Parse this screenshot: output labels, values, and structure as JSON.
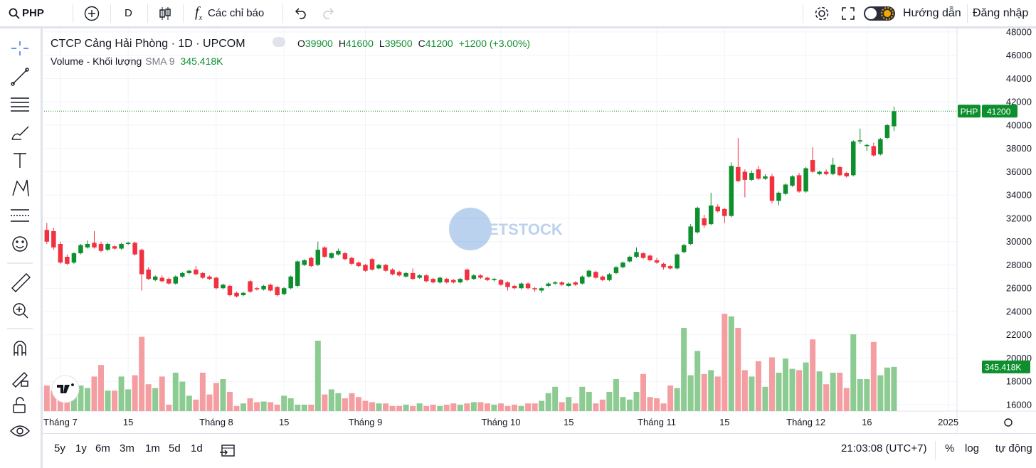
{
  "toolbar": {
    "symbol": "PHP",
    "interval": "D",
    "indicators": "Các chỉ báo",
    "guide": "Hướng dẫn",
    "login": "Đăng nhập"
  },
  "ranges": [
    "5y",
    "1y",
    "6m",
    "3m",
    "1m",
    "5d",
    "1d"
  ],
  "clock": "21:03:08 (UTC+7)",
  "scale_options": [
    "%",
    "log",
    "tự động"
  ],
  "watermark": "ETSTOCK",
  "chart_data": {
    "type": "candlestick",
    "title": "CTCP Cảng Hải Phòng · 1D · UPCOM",
    "ohlc_labels": [
      "O",
      "H",
      "L",
      "C"
    ],
    "change_label": "+1200 (+3.00%)",
    "volume_title": "Volume - Khối lượng",
    "sma_label": "SMA 9",
    "volume_label": "345.418K",
    "price_badge": "PHP",
    "up_color": "#0d8f2e",
    "down_color": "#f0313f",
    "up_volume_color": "#8ccb92",
    "down_volume_color": "#f59ea2",
    "grid": true,
    "xlim": [
      -0.4,
      134.3
    ],
    "xticks": [
      {
        "value": 2,
        "label": "Tháng 7"
      },
      {
        "value": 12,
        "label": "15"
      },
      {
        "value": 25,
        "label": "Tháng 8"
      },
      {
        "value": 35,
        "label": "15"
      },
      {
        "value": 47,
        "label": "Tháng 9"
      },
      {
        "value": 67,
        "label": "Tháng 10"
      },
      {
        "value": 77,
        "label": "15"
      },
      {
        "value": 90,
        "label": "Tháng 11"
      },
      {
        "value": 100,
        "label": "15"
      },
      {
        "value": 112,
        "label": "Tháng 12"
      },
      {
        "value": 121,
        "label": "16"
      },
      {
        "value": 133,
        "label": "2025"
      }
    ],
    "ylim": [
      15450,
      48300
    ],
    "yticks": [
      16000,
      18000,
      20000,
      22000,
      24000,
      26000,
      28000,
      30000,
      32000,
      34000,
      36000,
      38000,
      40000,
      42000,
      44000,
      46000,
      48000
    ],
    "vlim": [
      0,
      1000000
    ],
    "candles": [
      {
        "open": 31000,
        "high": 31600,
        "low": 29800,
        "close": 30000,
        "volume": 200000
      },
      {
        "open": 30900,
        "high": 31200,
        "low": 29300,
        "close": 29500,
        "volume": 160000
      },
      {
        "open": 29800,
        "high": 30000,
        "low": 28100,
        "close": 28200,
        "volume": 120000
      },
      {
        "open": 28700,
        "high": 28900,
        "low": 28000,
        "close": 28100,
        "volume": 150000
      },
      {
        "open": 28200,
        "high": 29100,
        "low": 28100,
        "close": 29000,
        "volume": 180000
      },
      {
        "open": 29000,
        "high": 29800,
        "low": 28900,
        "close": 29700,
        "volume": 200000
      },
      {
        "open": 29500,
        "high": 30100,
        "low": 29400,
        "close": 29800,
        "volume": 180000
      },
      {
        "open": 29900,
        "high": 30900,
        "low": 29400,
        "close": 29500,
        "volume": 270000
      },
      {
        "open": 29800,
        "high": 30000,
        "low": 29100,
        "close": 29200,
        "volume": 360000
      },
      {
        "open": 29300,
        "high": 29900,
        "low": 29200,
        "close": 29800,
        "volume": 160000
      },
      {
        "open": 29600,
        "high": 29700,
        "low": 29300,
        "close": 29400,
        "volume": 160000
      },
      {
        "open": 29400,
        "high": 29900,
        "low": 29300,
        "close": 29800,
        "volume": 270000
      },
      {
        "open": 29800,
        "high": 30000,
        "low": 29700,
        "close": 29900,
        "volume": 170000
      },
      {
        "open": 29900,
        "high": 30000,
        "low": 28800,
        "close": 28900,
        "volume": 280000
      },
      {
        "open": 29300,
        "high": 29400,
        "low": 25800,
        "close": 27200,
        "volume": 580000
      },
      {
        "open": 27600,
        "high": 27800,
        "low": 26700,
        "close": 26800,
        "volume": 210000
      },
      {
        "open": 26700,
        "high": 27100,
        "low": 26600,
        "close": 27000,
        "volume": 180000
      },
      {
        "open": 26900,
        "high": 27100,
        "low": 26500,
        "close": 26600,
        "volume": 270000
      },
      {
        "open": 26800,
        "high": 26900,
        "low": 26300,
        "close": 26400,
        "volume": 50000
      },
      {
        "open": 26400,
        "high": 27100,
        "low": 26300,
        "close": 27000,
        "volume": 300000
      },
      {
        "open": 27000,
        "high": 27400,
        "low": 26900,
        "close": 27300,
        "volume": 230000
      },
      {
        "open": 27300,
        "high": 27600,
        "low": 27200,
        "close": 27500,
        "volume": 120000
      },
      {
        "open": 27600,
        "high": 27900,
        "low": 27100,
        "close": 27200,
        "volume": 90000
      },
      {
        "open": 27300,
        "high": 27400,
        "low": 26800,
        "close": 26900,
        "volume": 300000
      },
      {
        "open": 27000,
        "high": 27100,
        "low": 26700,
        "close": 26800,
        "volume": 130000
      },
      {
        "open": 26900,
        "high": 27000,
        "low": 25900,
        "close": 26000,
        "volume": 220000
      },
      {
        "open": 26000,
        "high": 26400,
        "low": 25900,
        "close": 26300,
        "volume": 250000
      },
      {
        "open": 26200,
        "high": 26300,
        "low": 25300,
        "close": 25400,
        "volume": 150000
      },
      {
        "open": 25600,
        "high": 25700,
        "low": 25200,
        "close": 25300,
        "volume": 40000
      },
      {
        "open": 25400,
        "high": 25700,
        "low": 25300,
        "close": 25600,
        "volume": 60000
      },
      {
        "open": 26600,
        "high": 26700,
        "low": 25600,
        "close": 25700,
        "volume": 100000
      },
      {
        "open": 26000,
        "high": 26100,
        "low": 25800,
        "close": 25900,
        "volume": 70000
      },
      {
        "open": 25900,
        "high": 26300,
        "low": 25800,
        "close": 26200,
        "volume": 75000
      },
      {
        "open": 26300,
        "high": 26400,
        "low": 25700,
        "close": 25800,
        "volume": 70000
      },
      {
        "open": 26100,
        "high": 26200,
        "low": 25300,
        "close": 25400,
        "volume": 50000
      },
      {
        "open": 25500,
        "high": 26100,
        "low": 25400,
        "close": 26000,
        "volume": 120000
      },
      {
        "open": 26000,
        "high": 27100,
        "low": 25900,
        "close": 27000,
        "volume": 100000
      },
      {
        "open": 26200,
        "high": 28400,
        "low": 26100,
        "close": 28300,
        "volume": 50000
      },
      {
        "open": 28000,
        "high": 28500,
        "low": 27900,
        "close": 28400,
        "volume": 50000
      },
      {
        "open": 28600,
        "high": 28700,
        "low": 27800,
        "close": 27900,
        "volume": 50000
      },
      {
        "open": 28000,
        "high": 30000,
        "low": 27900,
        "close": 29300,
        "volume": 550000
      },
      {
        "open": 29500,
        "high": 29600,
        "low": 28600,
        "close": 28700,
        "volume": 130000
      },
      {
        "open": 28600,
        "high": 29100,
        "low": 28500,
        "close": 29000,
        "volume": 170000
      },
      {
        "open": 28900,
        "high": 29400,
        "low": 28800,
        "close": 29200,
        "volume": 140000
      },
      {
        "open": 29000,
        "high": 29100,
        "low": 28400,
        "close": 28500,
        "volume": 100000
      },
      {
        "open": 28600,
        "high": 28700,
        "low": 28000,
        "close": 28100,
        "volume": 140000
      },
      {
        "open": 28200,
        "high": 28300,
        "low": 27800,
        "close": 27900,
        "volume": 110000
      },
      {
        "open": 28000,
        "high": 28100,
        "low": 27400,
        "close": 27500,
        "volume": 80000
      },
      {
        "open": 28500,
        "high": 28600,
        "low": 27500,
        "close": 27600,
        "volume": 70000
      },
      {
        "open": 27700,
        "high": 28100,
        "low": 27600,
        "close": 28000,
        "volume": 60000
      },
      {
        "open": 28000,
        "high": 28100,
        "low": 27400,
        "close": 27500,
        "volume": 60000
      },
      {
        "open": 27600,
        "high": 27700,
        "low": 27100,
        "close": 27200,
        "volume": 40000
      },
      {
        "open": 27400,
        "high": 27500,
        "low": 27000,
        "close": 27100,
        "volume": 40000
      },
      {
        "open": 27000,
        "high": 27400,
        "low": 26900,
        "close": 27300,
        "volume": 50000
      },
      {
        "open": 27300,
        "high": 27700,
        "low": 26700,
        "close": 26800,
        "volume": 40000
      },
      {
        "open": 26900,
        "high": 27200,
        "low": 26800,
        "close": 27100,
        "volume": 60000
      },
      {
        "open": 27100,
        "high": 27200,
        "low": 26500,
        "close": 26600,
        "volume": 40000
      },
      {
        "open": 26800,
        "high": 26900,
        "low": 26400,
        "close": 26500,
        "volume": 50000
      },
      {
        "open": 26500,
        "high": 27000,
        "low": 26400,
        "close": 26900,
        "volume": 40000
      },
      {
        "open": 26800,
        "high": 26900,
        "low": 26400,
        "close": 26500,
        "volume": 50000
      },
      {
        "open": 26700,
        "high": 26800,
        "low": 26400,
        "close": 26500,
        "volume": 60000
      },
      {
        "open": 26500,
        "high": 26900,
        "low": 26400,
        "close": 26800,
        "volume": 50000
      },
      {
        "open": 27600,
        "high": 27700,
        "low": 26600,
        "close": 26700,
        "volume": 60000
      },
      {
        "open": 26800,
        "high": 27200,
        "low": 26700,
        "close": 27100,
        "volume": 70000
      },
      {
        "open": 27100,
        "high": 27200,
        "low": 26800,
        "close": 26900,
        "volume": 70000
      },
      {
        "open": 26900,
        "high": 27000,
        "low": 26600,
        "close": 26700,
        "volume": 60000
      },
      {
        "open": 26700,
        "high": 26900,
        "low": 26600,
        "close": 26800,
        "volume": 50000
      },
      {
        "open": 26700,
        "high": 26800,
        "low": 26200,
        "close": 26300,
        "volume": 60000
      },
      {
        "open": 26500,
        "high": 26600,
        "low": 25800,
        "close": 26100,
        "volume": 40000
      },
      {
        "open": 26200,
        "high": 26300,
        "low": 25900,
        "close": 26000,
        "volume": 50000
      },
      {
        "open": 26000,
        "high": 26500,
        "low": 25900,
        "close": 26400,
        "volume": 40000
      },
      {
        "open": 26400,
        "high": 26500,
        "low": 25900,
        "close": 26000,
        "volume": 60000
      },
      {
        "open": 26000,
        "high": 26100,
        "low": 25700,
        "close": 25900,
        "volume": 60000
      },
      {
        "open": 25800,
        "high": 26100,
        "low": 25600,
        "close": 26000,
        "volume": 80000
      },
      {
        "open": 26200,
        "high": 26500,
        "low": 26100,
        "close": 26400,
        "volume": 140000
      },
      {
        "open": 26400,
        "high": 26600,
        "low": 26300,
        "close": 26500,
        "volume": 190000
      },
      {
        "open": 26500,
        "high": 26600,
        "low": 26200,
        "close": 26300,
        "volume": 70000
      },
      {
        "open": 26200,
        "high": 26500,
        "low": 26100,
        "close": 26400,
        "volume": 110000
      },
      {
        "open": 26500,
        "high": 26600,
        "low": 26200,
        "close": 26300,
        "volume": 60000
      },
      {
        "open": 26400,
        "high": 27100,
        "low": 26300,
        "close": 27000,
        "volume": 190000
      },
      {
        "open": 27000,
        "high": 27600,
        "low": 26900,
        "close": 27500,
        "volume": 150000
      },
      {
        "open": 27400,
        "high": 27500,
        "low": 26800,
        "close": 26900,
        "volume": 60000
      },
      {
        "open": 27000,
        "high": 27100,
        "low": 26600,
        "close": 26700,
        "volume": 90000
      },
      {
        "open": 26700,
        "high": 27300,
        "low": 26600,
        "close": 27200,
        "volume": 150000
      },
      {
        "open": 27300,
        "high": 27900,
        "low": 27200,
        "close": 27800,
        "volume": 250000
      },
      {
        "open": 27800,
        "high": 28300,
        "low": 27700,
        "close": 28200,
        "volume": 110000
      },
      {
        "open": 28300,
        "high": 28800,
        "low": 28200,
        "close": 28700,
        "volume": 90000
      },
      {
        "open": 28700,
        "high": 29500,
        "low": 28600,
        "close": 29100,
        "volume": 150000
      },
      {
        "open": 29000,
        "high": 29100,
        "low": 28500,
        "close": 28600,
        "volume": 290000
      },
      {
        "open": 28800,
        "high": 28900,
        "low": 28300,
        "close": 28400,
        "volume": 110000
      },
      {
        "open": 28400,
        "high": 28600,
        "low": 28100,
        "close": 28200,
        "volume": 100000
      },
      {
        "open": 28100,
        "high": 28200,
        "low": 27600,
        "close": 27800,
        "volume": 60000
      },
      {
        "open": 27900,
        "high": 28000,
        "low": 27600,
        "close": 27700,
        "volume": 200000
      },
      {
        "open": 27700,
        "high": 29000,
        "low": 27600,
        "close": 28900,
        "volume": 180000
      },
      {
        "open": 29100,
        "high": 29800,
        "low": 29000,
        "close": 29700,
        "volume": 650000
      },
      {
        "open": 29800,
        "high": 31500,
        "low": 29700,
        "close": 31300,
        "volume": 280000
      },
      {
        "open": 30800,
        "high": 33000,
        "low": 30700,
        "close": 32900,
        "volume": 470000
      },
      {
        "open": 32000,
        "high": 32300,
        "low": 31200,
        "close": 31400,
        "volume": 290000
      },
      {
        "open": 31500,
        "high": 34200,
        "low": 31400,
        "close": 33100,
        "volume": 320000
      },
      {
        "open": 33000,
        "high": 33200,
        "low": 32500,
        "close": 32600,
        "volume": 270000
      },
      {
        "open": 32800,
        "high": 32900,
        "low": 31600,
        "close": 32200,
        "volume": 760000
      },
      {
        "open": 32200,
        "high": 36800,
        "low": 32100,
        "close": 36500,
        "volume": 740000
      },
      {
        "open": 36400,
        "high": 38900,
        "low": 35100,
        "close": 35200,
        "volume": 650000
      },
      {
        "open": 36000,
        "high": 36200,
        "low": 33800,
        "close": 35300,
        "volume": 320000
      },
      {
        "open": 35300,
        "high": 36100,
        "low": 35200,
        "close": 35900,
        "volume": 270000
      },
      {
        "open": 36200,
        "high": 36500,
        "low": 35300,
        "close": 35400,
        "volume": 390000
      },
      {
        "open": 35400,
        "high": 35800,
        "low": 35300,
        "close": 35600,
        "volume": 190000
      },
      {
        "open": 35600,
        "high": 35800,
        "low": 33300,
        "close": 33500,
        "volume": 420000
      },
      {
        "open": 33500,
        "high": 34300,
        "low": 33100,
        "close": 34200,
        "volume": 300000
      },
      {
        "open": 34100,
        "high": 35000,
        "low": 34000,
        "close": 34900,
        "volume": 410000
      },
      {
        "open": 34800,
        "high": 35700,
        "low": 34700,
        "close": 35600,
        "volume": 330000
      },
      {
        "open": 35700,
        "high": 35900,
        "low": 34200,
        "close": 34300,
        "volume": 320000
      },
      {
        "open": 34300,
        "high": 36400,
        "low": 34200,
        "close": 36300,
        "volume": 380000
      },
      {
        "open": 37000,
        "high": 38100,
        "low": 35900,
        "close": 36000,
        "volume": 560000
      },
      {
        "open": 35800,
        "high": 36100,
        "low": 35700,
        "close": 36000,
        "volume": 310000
      },
      {
        "open": 36000,
        "high": 36200,
        "low": 35700,
        "close": 35800,
        "volume": 210000
      },
      {
        "open": 35800,
        "high": 37200,
        "low": 35700,
        "close": 36600,
        "volume": 300000
      },
      {
        "open": 36400,
        "high": 36500,
        "low": 35600,
        "close": 35700,
        "volume": 300000
      },
      {
        "open": 35900,
        "high": 36000,
        "low": 35500,
        "close": 35600,
        "volume": 180000
      },
      {
        "open": 35700,
        "high": 38700,
        "low": 35600,
        "close": 38600,
        "volume": 600000
      },
      {
        "open": 38600,
        "high": 39700,
        "low": 38400,
        "close": 38700,
        "volume": 250000
      },
      {
        "open": 38200,
        "high": 38400,
        "low": 37800,
        "close": 38300,
        "volume": 250000
      },
      {
        "open": 38200,
        "high": 38500,
        "low": 37300,
        "close": 37400,
        "volume": 540000
      },
      {
        "open": 37500,
        "high": 38900,
        "low": 37400,
        "close": 38800,
        "volume": 280000
      },
      {
        "open": 38900,
        "high": 40100,
        "low": 38800,
        "close": 40000,
        "volume": 340000
      },
      {
        "open": 39900,
        "high": 41600,
        "low": 39500,
        "close": 41200,
        "volume": 345418
      }
    ]
  }
}
